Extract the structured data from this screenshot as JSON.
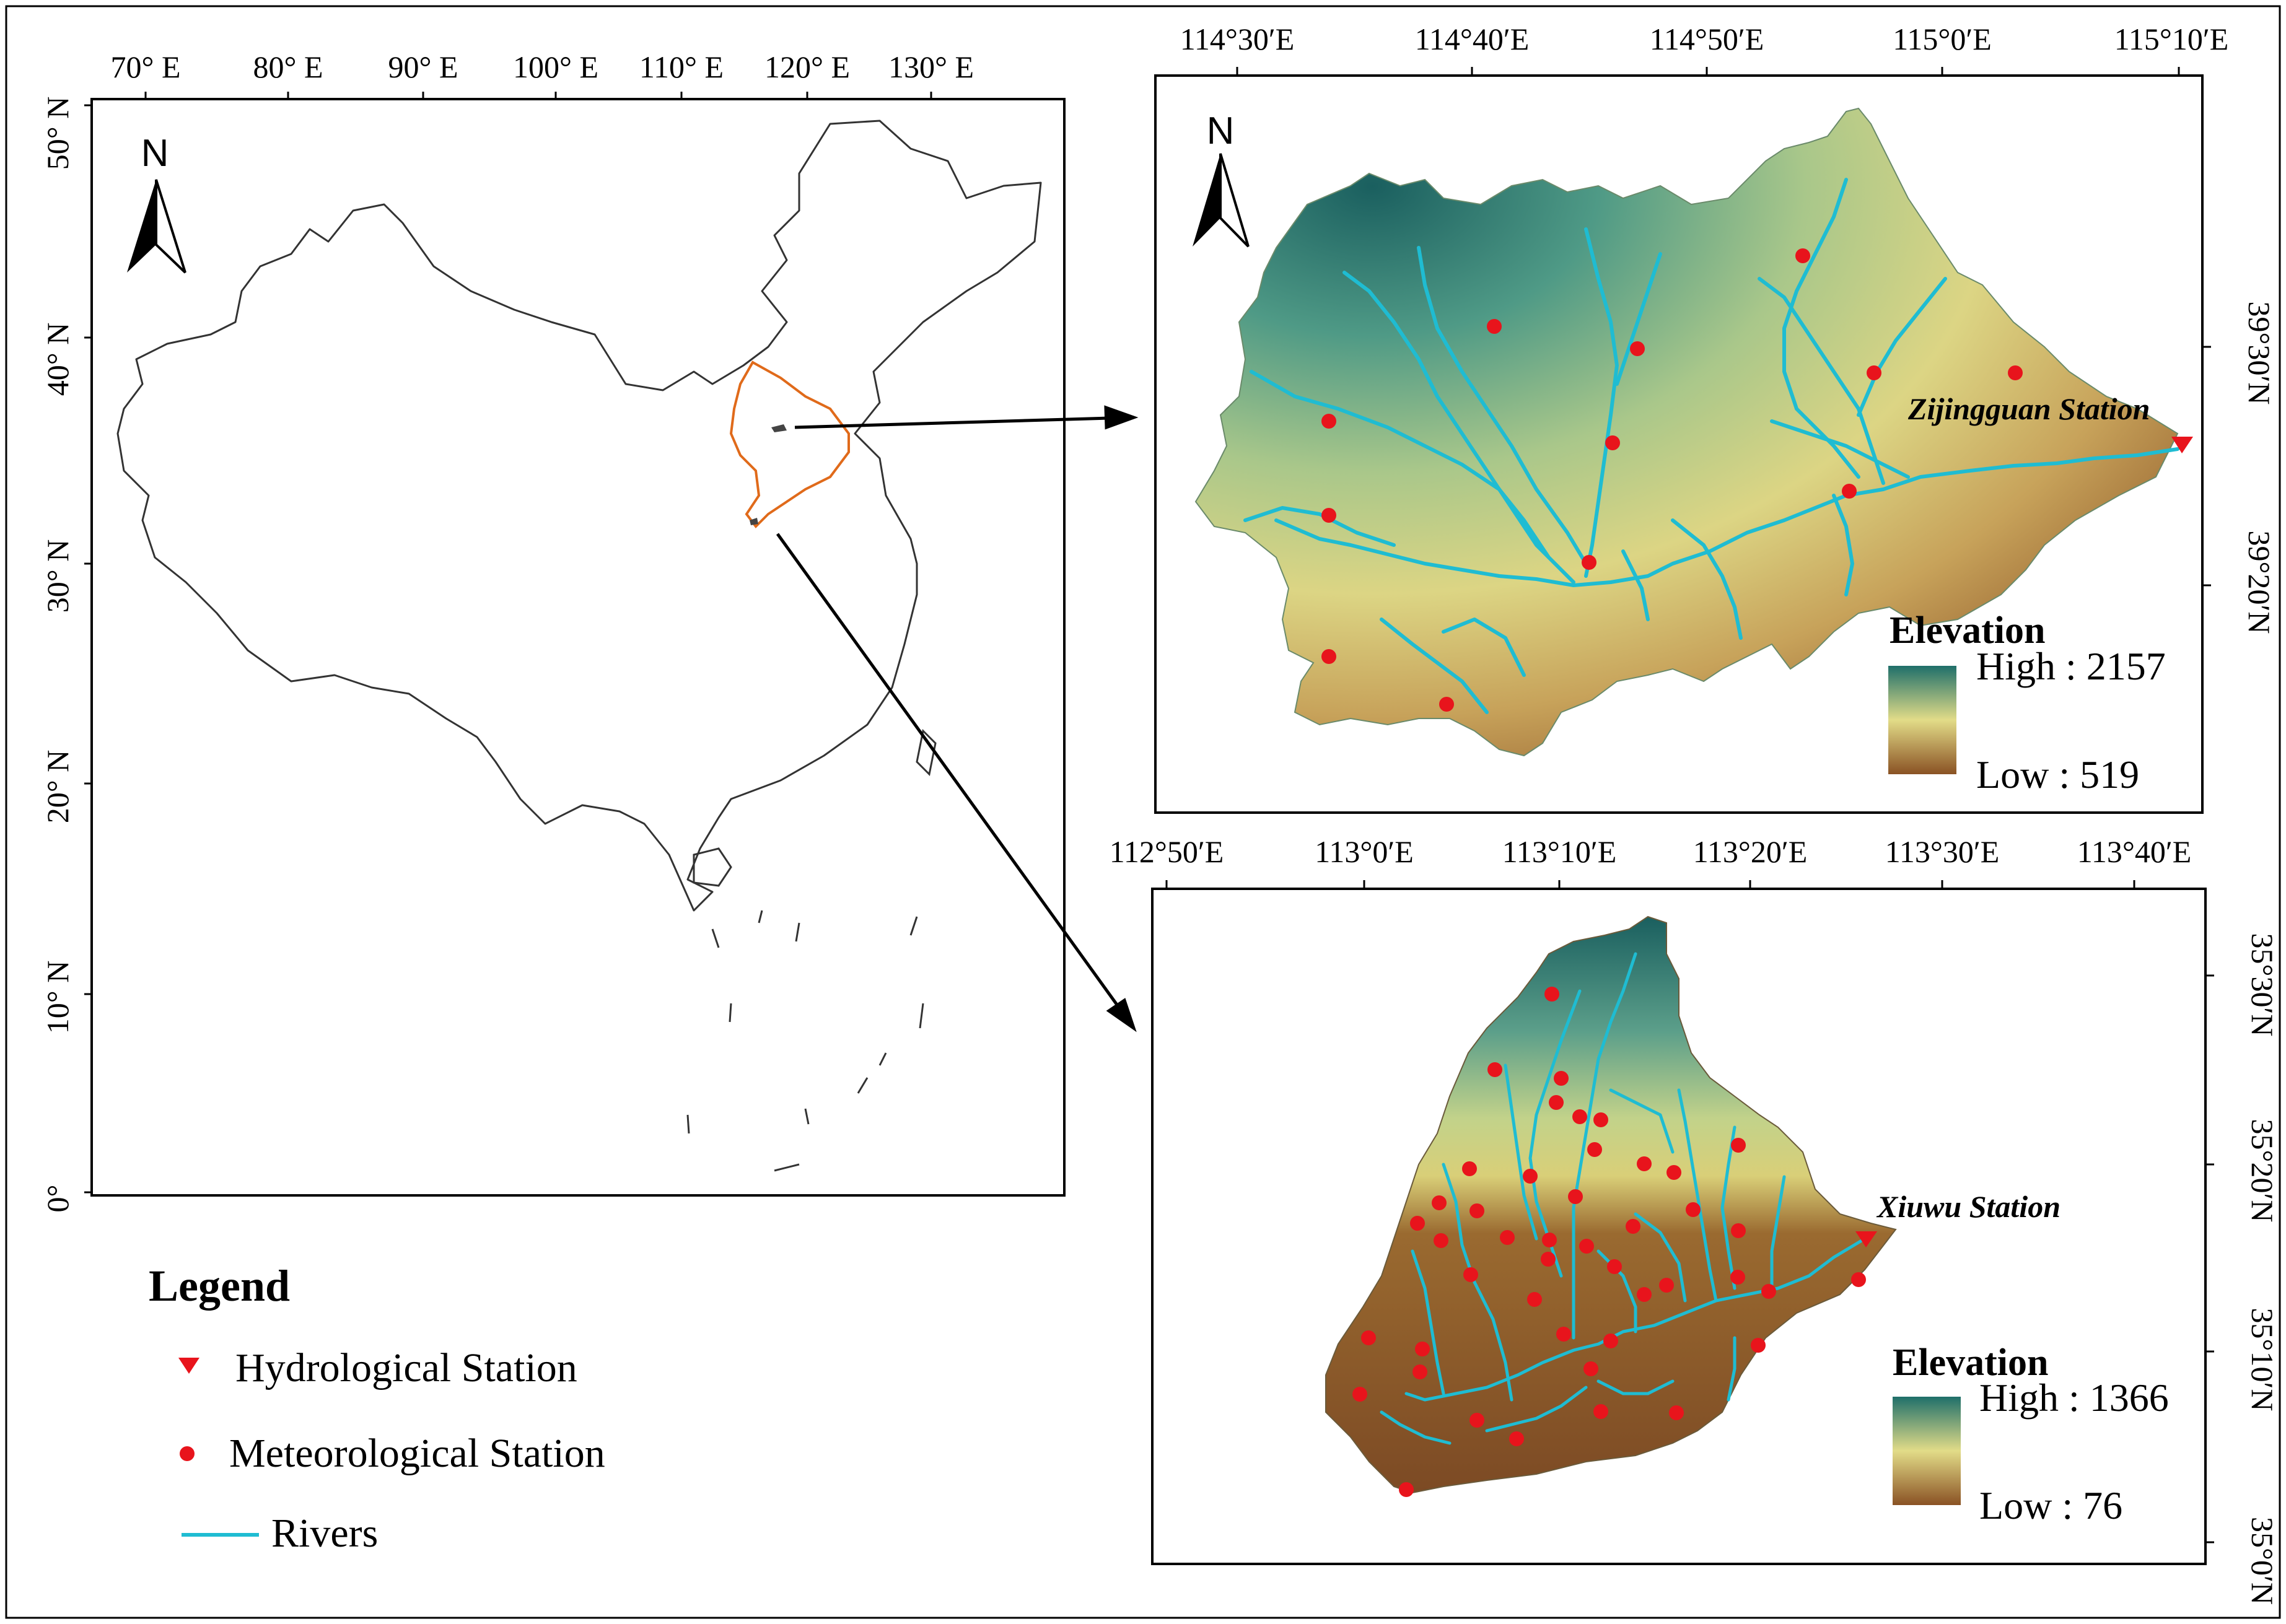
{
  "legend": {
    "title": "Legend",
    "hydrological": "Hydrological Station",
    "meteorological": "Meteorological Station",
    "rivers": "Rivers"
  },
  "china_map": {
    "north": "N",
    "lon_ticks": [
      "70° E",
      "80° E",
      "90° E",
      "100° E",
      "110° E",
      "120° E",
      "130° E"
    ],
    "lat_ticks": [
      "50° N",
      "40° N",
      "30° N",
      "20° N",
      "10° N",
      "0°"
    ]
  },
  "basin_top": {
    "north": "N",
    "lon_ticks": [
      "114°30′E",
      "114°40′E",
      "114°50′E",
      "115°0′E",
      "115°10′E"
    ],
    "lat_ticks": [
      "39°30′N",
      "39°20′N"
    ],
    "station": "Zijingguan Station",
    "elevation": {
      "title": "Elevation",
      "high": "High : 2157",
      "low": "Low : 519"
    }
  },
  "basin_bottom": {
    "lon_ticks": [
      "112°50′E",
      "113°0′E",
      "113°10′E",
      "113°20′E",
      "113°30′E",
      "113°40′E"
    ],
    "lat_ticks": [
      "35°30′N",
      "35°20′N",
      "35°10′N",
      "35°0′N"
    ],
    "station": "Xiuwu Station",
    "elevation": {
      "title": "Elevation",
      "high": "High : 1366",
      "low": "Low : 76"
    }
  },
  "colors": {
    "river": "#1fbcd2",
    "station": "#e8141c",
    "province": "#e06a1a",
    "elev_high": "#1f6f6a",
    "elev_mid": "#e2dc88",
    "elev_low": "#8a5224"
  }
}
